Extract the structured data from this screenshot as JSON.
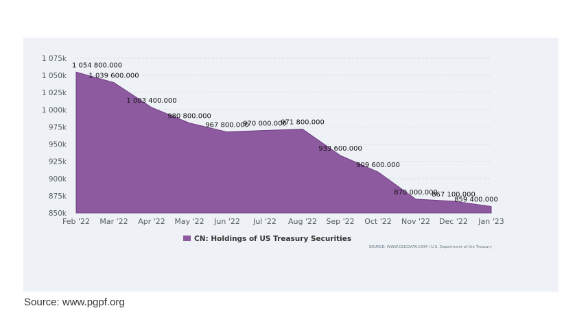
{
  "chart_data": {
    "type": "area",
    "categories": [
      "Feb '22",
      "Mar '22",
      "Apr '22",
      "May '22",
      "Jun '22",
      "Jul '22",
      "Aug '22",
      "Sep '22",
      "Oct '22",
      "Nov '22",
      "Dec '22",
      "Jan '23"
    ],
    "values": [
      1054800,
      1039600,
      1003400,
      980800,
      967800,
      970000,
      971800,
      933600,
      909600,
      870000,
      867100,
      859400
    ],
    "data_labels": [
      "1 054 800.000",
      "1 039 600.000",
      "1 003 400.000",
      "980 800.000",
      "967 800.000",
      "970 000.000",
      "971 800.000",
      "933 600.000",
      "909 600.000",
      "870 000.000",
      "867 100.000",
      "859 400.000"
    ],
    "yticks": [
      850000,
      875000,
      900000,
      925000,
      950000,
      975000,
      1000000,
      1025000,
      1050000,
      1075000
    ],
    "ytick_labels": [
      "850k",
      "875k",
      "900k",
      "925k",
      "950k",
      "975k",
      "1 000k",
      "1 025k",
      "1 050k",
      "1 075k"
    ],
    "ylim": [
      850000,
      1075000
    ],
    "series_name": "CN: Holdings of US Treasury Securities",
    "series_color": "#8e5a9f",
    "source_note": "SOURCE: WWW.CEICDATA.COM | U.S. Department of the Treasury",
    "grid": true,
    "legend_position": "bottom-center"
  },
  "page": {
    "source": "Source: www.pgpf.org",
    "panel_background": "#eef2f6"
  }
}
